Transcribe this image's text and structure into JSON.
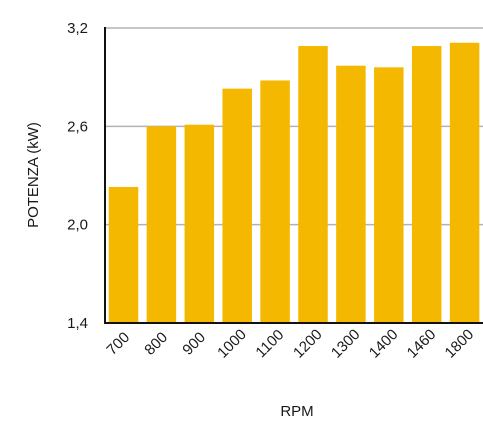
{
  "chart_data": {
    "type": "bar",
    "title": "",
    "xlabel": "RPM",
    "ylabel": "POTENZA (kW)",
    "categories": [
      "700",
      "800",
      "900",
      "1000",
      "1100",
      "1200",
      "1300",
      "1400",
      "1460",
      "1800"
    ],
    "values": [
      2.23,
      2.6,
      2.61,
      2.83,
      2.88,
      3.09,
      2.97,
      2.96,
      3.09,
      3.11
    ],
    "ylim": [
      1.4,
      3.2
    ],
    "yticks": [
      1.4,
      2.0,
      2.6,
      3.2
    ],
    "ytick_labels": [
      "1,4",
      "2,0",
      "2,6",
      "3,2"
    ],
    "grid": true,
    "legend": "none",
    "colors": {
      "bar": "#F5B800",
      "grid": "#b3b3b3",
      "axis": "#111111",
      "text": "#1a1a1a"
    }
  }
}
